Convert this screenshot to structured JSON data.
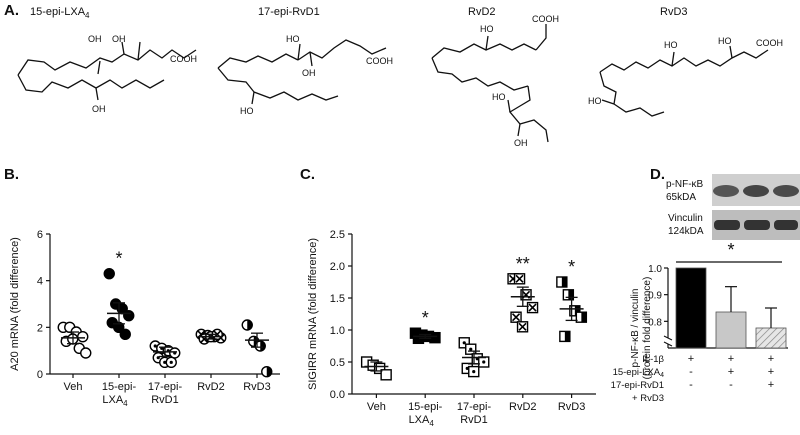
{
  "panels": {
    "a": "A.",
    "b": "B.",
    "c": "C.",
    "d": "D."
  },
  "structures": [
    {
      "name": "15-epi-LXA",
      "sub": "4",
      "cooh": "COOH",
      "oh": [
        "OH",
        "OH",
        "OH"
      ]
    },
    {
      "name": "17-epi-RvD1",
      "sub": "",
      "cooh": "COOH",
      "oh": [
        "HO",
        "OH",
        "HO"
      ]
    },
    {
      "name": "RvD2",
      "sub": "",
      "cooh": "COOH",
      "oh": [
        "HO",
        "HO",
        "OH"
      ]
    },
    {
      "name": "RvD3",
      "sub": "",
      "cooh": "COOH",
      "oh": [
        "HO",
        "HO",
        "HO"
      ]
    }
  ],
  "chart_data": [
    {
      "type": "scatter",
      "ylabel": "A20 mRNA (fold difference)",
      "ylim": [
        0,
        6
      ],
      "yticks": [
        "0",
        "2",
        "4",
        "6"
      ],
      "categories": [
        "Veh",
        "15-epi-LXA4",
        "17-epi-RvD1",
        "RvD2",
        "RvD3"
      ],
      "category_labels": [
        [
          "Veh"
        ],
        [
          "15-epi-",
          "LXA",
          "4"
        ],
        [
          "17-epi-",
          "RvD1"
        ],
        [
          "RvD2"
        ],
        [
          "RvD3"
        ]
      ],
      "means": [
        1.55,
        2.6,
        0.95,
        1.6,
        1.45
      ],
      "sems": [
        0.25,
        0.45,
        0.2,
        0.1,
        0.3
      ],
      "points": [
        [
          2.0,
          2.0,
          1.8,
          1.6,
          1.4,
          1.5,
          1.1,
          0.9
        ],
        [
          4.3,
          3.0,
          2.8,
          2.5,
          2.2,
          2.0,
          1.7
        ],
        [
          1.2,
          1.1,
          1.0,
          0.9,
          0.7,
          0.5,
          0.5
        ],
        [
          1.7,
          1.65,
          1.6,
          1.55,
          1.5,
          1.6,
          1.7
        ],
        [
          2.1,
          1.4,
          1.2,
          0.1
        ]
      ],
      "markers": [
        "open-circle",
        "filled-circle",
        "dot-circle",
        "cross-circle",
        "half-circle"
      ],
      "significance": [
        "",
        "*",
        "",
        "",
        ""
      ]
    },
    {
      "type": "scatter",
      "ylabel": "SIGIRR mRNA (fold difference)",
      "ylim": [
        0,
        2.5
      ],
      "yticks": [
        "0.0",
        "0.5",
        "1.0",
        "1.5",
        "2.0",
        "2.5"
      ],
      "categories": [
        "Veh",
        "15-epi-LXA4",
        "17-epi-RvD1",
        "RvD2",
        "RvD3"
      ],
      "category_labels": [
        [
          "Veh"
        ],
        [
          "15-epi-",
          "LXA",
          "4"
        ],
        [
          "17-epi-",
          "RvD1"
        ],
        [
          "RvD2"
        ],
        [
          "RvD3"
        ]
      ],
      "means": [
        0.43,
        0.9,
        0.57,
        1.52,
        1.33
      ],
      "sems": [
        0.07,
        0.03,
        0.1,
        0.15,
        0.18
      ],
      "points": [
        [
          0.5,
          0.45,
          0.4,
          0.3
        ],
        [
          0.95,
          0.92,
          0.9,
          0.88,
          0.87
        ],
        [
          0.8,
          0.7,
          0.55,
          0.5,
          0.4,
          0.35
        ],
        [
          1.8,
          1.8,
          1.55,
          1.35,
          1.2,
          1.05
        ],
        [
          1.75,
          1.55,
          1.3,
          1.2,
          0.9
        ]
      ],
      "markers": [
        "open-square",
        "filled-square",
        "dot-square",
        "cross-square",
        "half-square"
      ],
      "significance": [
        "",
        "*",
        "",
        "**",
        "*"
      ]
    },
    {
      "type": "bar",
      "ylabel": "p-NF-κB / vinculin",
      "ylabel2": "(protein fold difference)",
      "ylim": [
        0.7,
        1.0
      ],
      "yticks": [
        "0.8",
        "0.9",
        "1.0"
      ],
      "values": [
        1.0,
        0.835,
        0.775
      ],
      "errors": [
        0,
        0.095,
        0.075
      ],
      "fills": [
        "#000000",
        "#c8c8c8",
        "hatched"
      ],
      "significance": "*",
      "treatments": [
        {
          "label": "IL-1β",
          "sub": "",
          "signs": [
            "+",
            "+",
            "+"
          ]
        },
        {
          "label": "15-epi-LXA",
          "sub": "4",
          "signs": [
            "-",
            "+",
            "+"
          ]
        },
        {
          "label": "17-epi-RvD1",
          "sub": "",
          "signs": [
            "-",
            "-",
            "+"
          ]
        },
        {
          "label": "+ RvD3",
          "sub": "",
          "signs": [
            "",
            "",
            ""
          ]
        }
      ]
    }
  ],
  "blots": [
    {
      "label1": "p-NF-κB",
      "label2": "65kDA"
    },
    {
      "label1": "Vinculin",
      "label2": "124kDA"
    }
  ]
}
